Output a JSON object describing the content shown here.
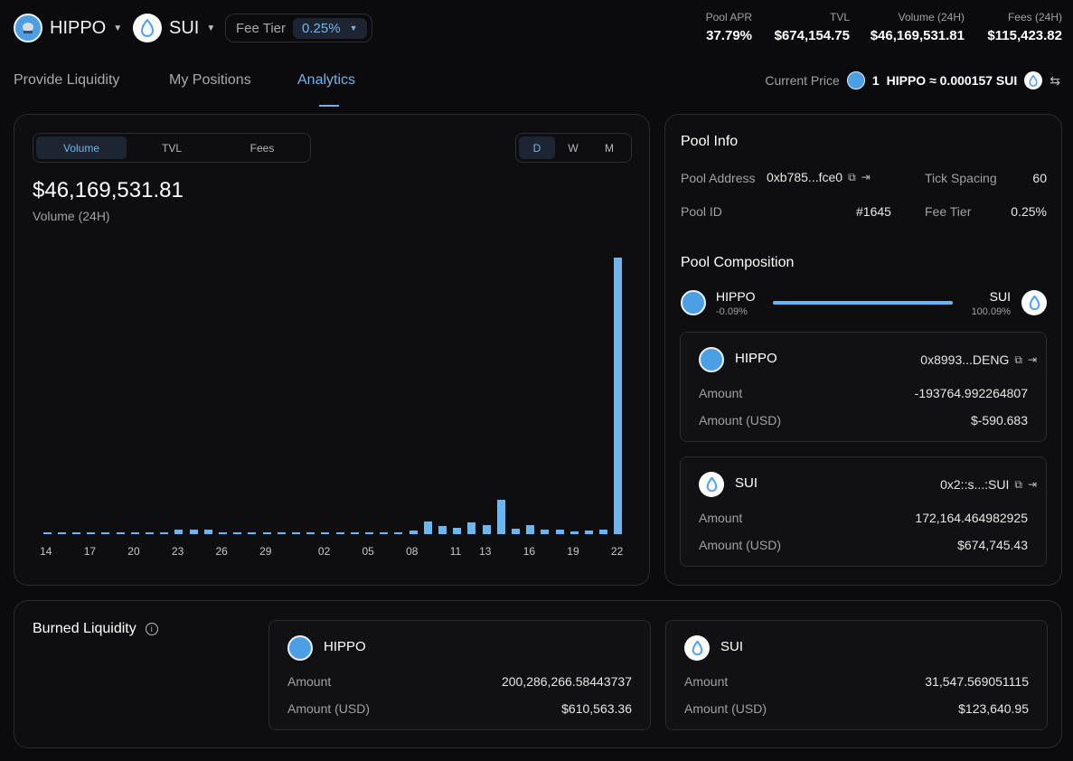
{
  "header": {
    "token_a": "HIPPO",
    "token_b": "SUI",
    "fee_tier_label": "Fee Tier",
    "fee_tier_value": "0.25%",
    "stats": [
      {
        "label": "Pool APR",
        "value": "37.79%"
      },
      {
        "label": "TVL",
        "value": "$674,154.75"
      },
      {
        "label": "Volume (24H)",
        "value": "$46,169,531.81"
      },
      {
        "label": "Fees (24H)",
        "value": "$115,423.82"
      }
    ]
  },
  "tabs": [
    "Provide Liquidity",
    "My Positions",
    "Analytics"
  ],
  "current_price": {
    "label": "Current Price",
    "amount": "1",
    "text": "HIPPO ≈ 0.000157 SUI"
  },
  "chart_panel": {
    "metric_tabs": [
      "Volume",
      "TVL",
      "Fees"
    ],
    "period_tabs": [
      "D",
      "W",
      "M"
    ],
    "value": "$46,169,531.81",
    "value_label": "Volume (24H)"
  },
  "chart_data": {
    "type": "bar",
    "categories": [
      "14",
      "15",
      "16",
      "17",
      "18",
      "19",
      "20",
      "21",
      "22",
      "23",
      "24",
      "25",
      "26",
      "27",
      "28",
      "29",
      "30",
      "31",
      "01",
      "02",
      "03",
      "04",
      "05",
      "06",
      "07",
      "08",
      "09",
      "10",
      "11",
      "12",
      "13",
      "14",
      "15",
      "16",
      "17",
      "18",
      "19",
      "20",
      "21",
      "22"
    ],
    "tick_labels": [
      "14",
      "17",
      "20",
      "23",
      "26",
      "29",
      "02",
      "05",
      "08",
      "11",
      "13",
      "16",
      "19",
      "22"
    ],
    "values": [
      0.03,
      0.03,
      0.03,
      0.05,
      0.05,
      0.05,
      0.05,
      0.05,
      0.05,
      0.17,
      0.17,
      0.17,
      0.07,
      0.05,
      0.05,
      0.05,
      0.05,
      0.04,
      0.04,
      0.07,
      0.07,
      0.05,
      0.05,
      0.05,
      0.07,
      0.12,
      0.45,
      0.3,
      0.22,
      0.42,
      0.33,
      1.2,
      0.18,
      0.33,
      0.17,
      0.17,
      0.1,
      0.12,
      0.15,
      9.75
    ],
    "unit": "relative",
    "ylim": [
      0,
      10
    ]
  },
  "pool_info": {
    "title": "Pool Info",
    "address_label": "Pool Address",
    "address_value": "0xb785...fce0",
    "tick_spacing_label": "Tick Spacing",
    "tick_spacing_value": "60",
    "pool_id_label": "Pool ID",
    "pool_id_value": "#1645",
    "fee_tier_label": "Fee Tier",
    "fee_tier_value": "0.25%"
  },
  "composition": {
    "title": "Pool Composition",
    "token_a": "HIPPO",
    "token_a_pct": "-0.09%",
    "token_b": "SUI",
    "token_b_pct": "100.09%",
    "bar_fill_fraction": 1.0,
    "cards": [
      {
        "name": "HIPPO",
        "address": "0x8993...DENG",
        "amount_label": "Amount",
        "amount": "-193764.992264807",
        "usd_label": "Amount (USD)",
        "usd": "$-590.683"
      },
      {
        "name": "SUI",
        "address": "0x2::s...:SUI",
        "amount_label": "Amount",
        "amount": "172,164.464982925",
        "usd_label": "Amount (USD)",
        "usd": "$674,745.43"
      }
    ]
  },
  "burned": {
    "title": "Burned Liquidity",
    "cards": [
      {
        "name": "HIPPO",
        "amount_label": "Amount",
        "amount": "200,286,266.58443737",
        "usd_label": "Amount (USD)",
        "usd": "$610,563.36"
      },
      {
        "name": "SUI",
        "amount_label": "Amount",
        "amount": "31,547.569051115",
        "usd_label": "Amount (USD)",
        "usd": "$123,640.95"
      }
    ]
  },
  "colors": {
    "accent": "#6cb6f0",
    "bg": "#0b0b0d",
    "panel_border": "#2a2a2f"
  }
}
